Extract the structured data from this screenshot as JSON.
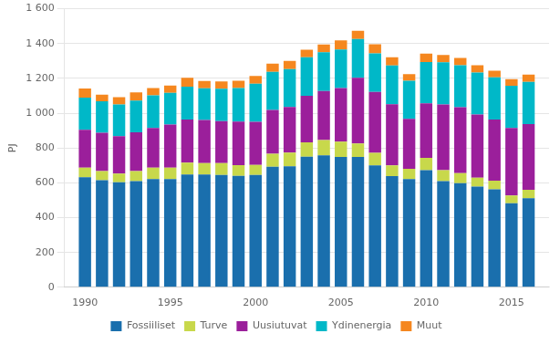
{
  "chart_data": {
    "type": "bar",
    "stacked": true,
    "ylabel": "PJ",
    "x": [
      1990,
      1991,
      1992,
      1993,
      1994,
      1995,
      1996,
      1997,
      1998,
      1999,
      2000,
      2001,
      2002,
      2003,
      2004,
      2005,
      2006,
      2007,
      2008,
      2009,
      2010,
      2011,
      2012,
      2013,
      2014,
      2015,
      2016
    ],
    "series": [
      {
        "name": "Fossiiliset",
        "color": "#1a6fad",
        "values": [
          632,
          615,
          603,
          610,
          622,
          622,
          648,
          648,
          645,
          640,
          645,
          692,
          695,
          750,
          758,
          748,
          748,
          700,
          638,
          622,
          672,
          610,
          598,
          578,
          562,
          482,
          512
        ]
      },
      {
        "name": "Turve",
        "color": "#c8d84b",
        "values": [
          55,
          52,
          50,
          58,
          65,
          65,
          68,
          65,
          68,
          62,
          58,
          75,
          78,
          82,
          88,
          88,
          78,
          72,
          62,
          58,
          72,
          62,
          58,
          52,
          50,
          45,
          48
        ]
      },
      {
        "name": "Uusiutuvat",
        "color": "#9b1f9b",
        "values": [
          218,
          220,
          215,
          222,
          228,
          248,
          248,
          248,
          242,
          250,
          248,
          252,
          262,
          268,
          282,
          308,
          378,
          350,
          352,
          288,
          312,
          378,
          378,
          362,
          352,
          388,
          378
        ]
      },
      {
        "name": "Ydinenergia",
        "color": "#00b8c8",
        "values": [
          185,
          182,
          182,
          182,
          188,
          182,
          188,
          182,
          185,
          192,
          218,
          218,
          218,
          222,
          222,
          222,
          222,
          222,
          222,
          218,
          238,
          242,
          242,
          242,
          242,
          242,
          242
        ]
      },
      {
        "name": "Muut",
        "color": "#f5871f",
        "values": [
          52,
          38,
          42,
          48,
          42,
          42,
          52,
          42,
          42,
          42,
          45,
          48,
          48,
          42,
          45,
          52,
          48,
          52,
          48,
          38,
          48,
          42,
          42,
          42,
          38,
          38,
          42
        ]
      }
    ],
    "xlim": [
      1988.8,
      2017.2
    ],
    "xticks": [
      1990,
      1995,
      2000,
      2005,
      2010,
      2015
    ],
    "ylim": [
      0,
      1600
    ],
    "yticks": [
      0,
      200,
      400,
      600,
      800,
      {
        "value": 1000,
        "label": "1 000"
      },
      {
        "value": 1200,
        "label": "1 200"
      },
      {
        "value": 1400,
        "label": "1 400"
      },
      {
        "value": 1600,
        "label": "1 600"
      }
    ],
    "grid": true,
    "legend": "bottom"
  }
}
